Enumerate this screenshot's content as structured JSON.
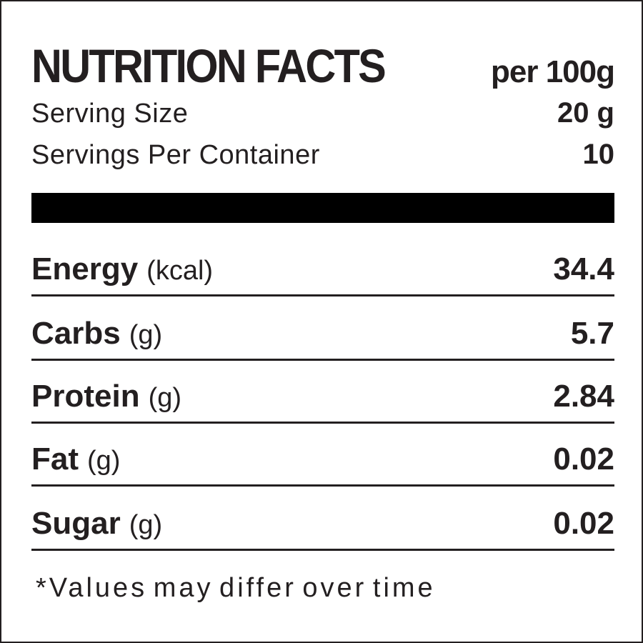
{
  "header": {
    "title": "NUTRITION FACTS",
    "subtitle": "per 100g"
  },
  "serving": [
    {
      "label": "Serving Size",
      "value": "20 g"
    },
    {
      "label": "Servings Per Container",
      "value": 10
    }
  ],
  "nutrients": [
    {
      "name": "Energy",
      "unit": "(kcal)",
      "value": 34.4
    },
    {
      "name": "Carbs",
      "unit": "(g)",
      "value": 5.7
    },
    {
      "name": "Protein",
      "unit": "(g)",
      "value": 2.84
    },
    {
      "name": "Fat",
      "unit": "(g)",
      "value": 0.02
    },
    {
      "name": "Sugar",
      "unit": "(g)",
      "value": 0.02
    }
  ],
  "footnote": "*Values may differ over time"
}
